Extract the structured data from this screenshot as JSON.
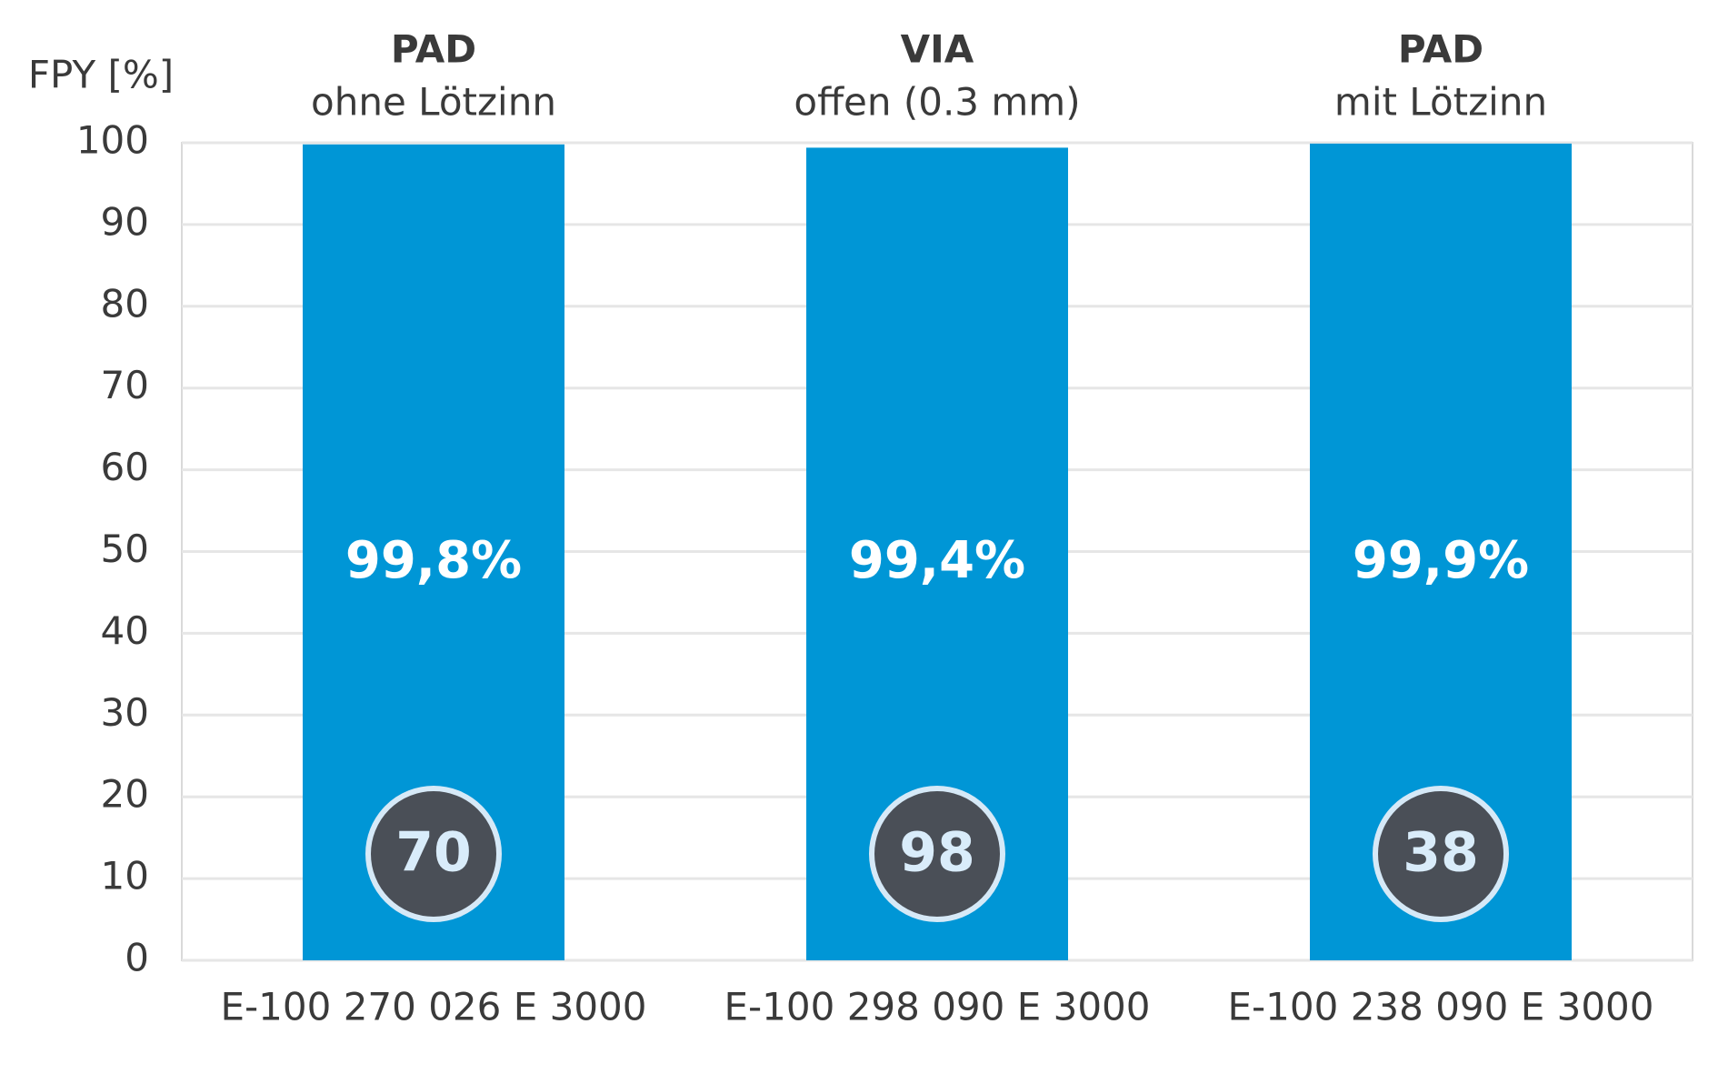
{
  "chart_data": {
    "type": "bar",
    "y_label": "FPY [%]",
    "categories": [
      "E-100 270 026 E 3000",
      "E-100 298 090 E 3000",
      "E-100 238 090 E 3000"
    ],
    "headers": [
      {
        "title": "PAD",
        "subtitle": "ohne Lötzinn"
      },
      {
        "title": "VIA",
        "subtitle": "offen (0.3 mm)"
      },
      {
        "title": "PAD",
        "subtitle": "mit Lötzinn"
      }
    ],
    "values": [
      99.8,
      99.4,
      99.9
    ],
    "value_labels": [
      "99,8%",
      "99,4%",
      "99,9%"
    ],
    "counts": [
      70,
      98,
      38
    ],
    "color": "#0096d6",
    "ylim": [
      0,
      100
    ],
    "yticks": [
      0,
      10,
      20,
      30,
      40,
      50,
      60,
      70,
      80,
      90,
      100
    ],
    "grid": true
  }
}
